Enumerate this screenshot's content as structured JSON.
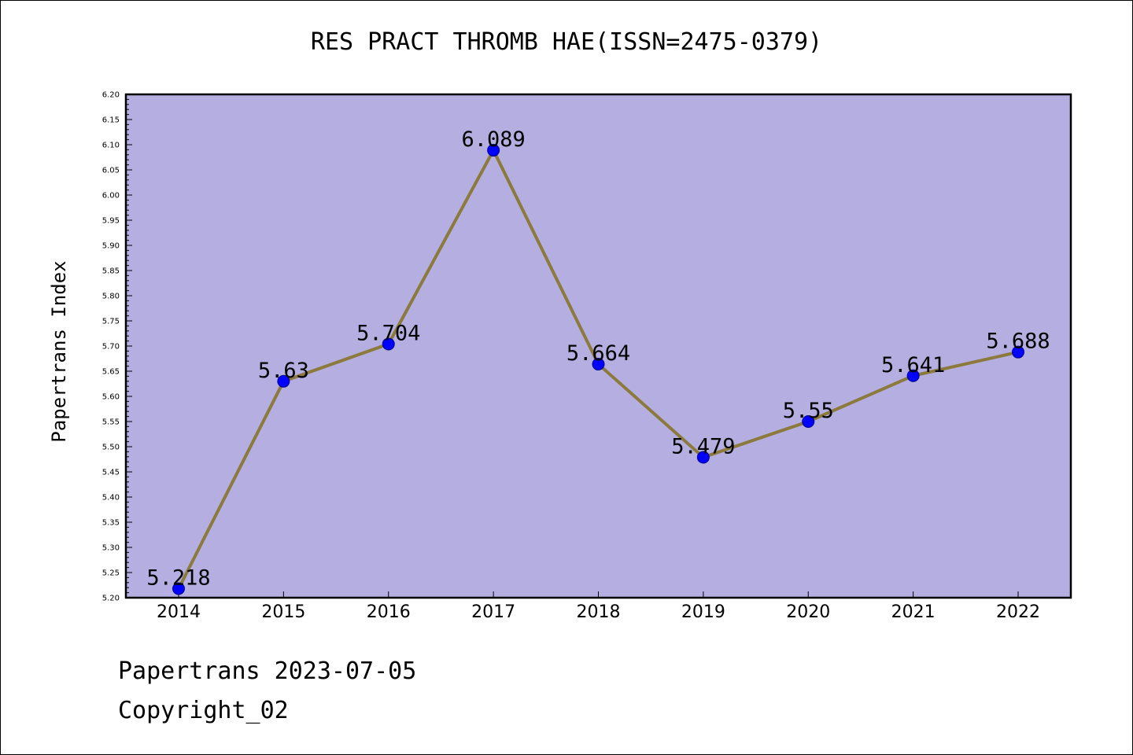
{
  "chart_data": {
    "type": "line",
    "title": "RES PRACT THROMB HAE(ISSN=2475-0379)",
    "xlabel": "",
    "ylabel": "Papertrans Index",
    "categories": [
      "2014",
      "2015",
      "2016",
      "2017",
      "2018",
      "2019",
      "2020",
      "2021",
      "2022"
    ],
    "series": [
      {
        "values": [
          5.218,
          5.63,
          5.704,
          6.089,
          5.664,
          5.479,
          5.55,
          5.641,
          5.688
        ],
        "labels": [
          "5.218",
          "5.63",
          "5.704",
          "6.089",
          "5.664",
          "5.479",
          "5.55",
          "5.641",
          "5.688"
        ]
      }
    ],
    "ylim": [
      5.2,
      6.2
    ],
    "yticks": [
      "5.20",
      "5.25",
      "5.30",
      "5.35",
      "5.40",
      "5.45",
      "5.50",
      "5.55",
      "5.60",
      "5.65",
      "5.70",
      "5.75",
      "5.80",
      "5.85",
      "5.90",
      "5.95",
      "6.00",
      "6.05",
      "6.10",
      "6.15",
      "6.20"
    ],
    "grid": false,
    "colors": {
      "plot_background": "#b5aee1",
      "line": "#8b7a3c",
      "marker": "#0000ff"
    }
  },
  "footer": {
    "date_text": "Papertrans 2023-07-05",
    "copyright_text": "Copyright_02"
  }
}
